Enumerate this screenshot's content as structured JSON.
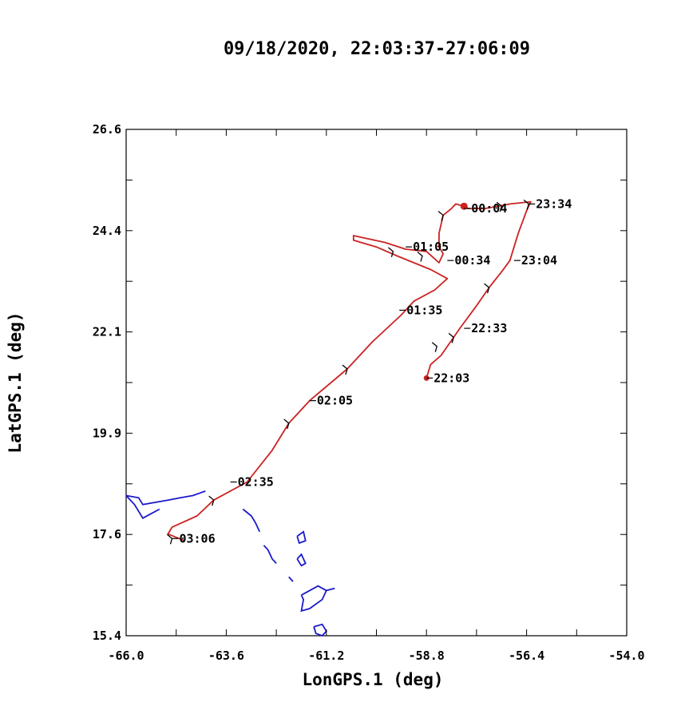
{
  "title": "09/18/2020, 22:03:37-27:06:09",
  "chart_data": {
    "type": "line",
    "title": "09/18/2020, 22:03:37-27:06:09",
    "xlabel": "LonGPS.1 (deg)",
    "ylabel": "LatGPS.1 (deg)",
    "xlim": [
      -66.0,
      -54.0
    ],
    "ylim": [
      15.4,
      26.6
    ],
    "x_ticks": [
      "-66.0",
      "-63.6",
      "-61.2",
      "-58.8",
      "-56.4",
      "-54.0"
    ],
    "y_ticks": [
      "15.4",
      "17.6",
      "19.9",
      "22.1",
      "24.4",
      "26.6"
    ],
    "grid": false,
    "track_color": "#cc2222",
    "coast_color": "#1a1acc",
    "series": [
      {
        "points": [
          [
            -58.8,
            21.1
          ],
          [
            -58.7,
            21.4
          ],
          [
            -58.45,
            21.6
          ],
          [
            -58.15,
            22.0
          ],
          [
            -58.0,
            22.2
          ],
          [
            -57.6,
            22.7
          ],
          [
            -57.3,
            23.1
          ],
          [
            -57.0,
            23.45
          ],
          [
            -56.8,
            23.7
          ],
          [
            -56.6,
            24.3
          ],
          [
            -56.4,
            24.8
          ],
          [
            -56.3,
            25.0
          ],
          [
            -56.8,
            24.95
          ],
          [
            -57.4,
            24.85
          ],
          [
            -57.8,
            24.85
          ],
          [
            -57.9,
            24.9
          ],
          [
            -58.1,
            24.95
          ],
          [
            -58.2,
            24.85
          ],
          [
            -58.4,
            24.7
          ],
          [
            -58.5,
            24.3
          ],
          [
            -58.5,
            24.0
          ],
          [
            -58.4,
            23.85
          ],
          [
            -58.5,
            23.65
          ],
          [
            -58.8,
            23.9
          ],
          [
            -59.3,
            23.95
          ],
          [
            -59.8,
            24.1
          ],
          [
            -60.3,
            24.2
          ],
          [
            -60.55,
            24.25
          ],
          [
            -60.55,
            24.15
          ],
          [
            -60.0,
            24.0
          ],
          [
            -59.5,
            23.8
          ],
          [
            -58.7,
            23.5
          ],
          [
            -58.3,
            23.3
          ],
          [
            -58.6,
            23.05
          ],
          [
            -59.1,
            22.8
          ],
          [
            -59.4,
            22.5
          ],
          [
            -60.1,
            21.9
          ],
          [
            -60.7,
            21.3
          ],
          [
            -61.6,
            20.6
          ],
          [
            -62.1,
            20.1
          ],
          [
            -62.5,
            19.5
          ],
          [
            -63.1,
            18.8
          ],
          [
            -63.9,
            18.4
          ],
          [
            -64.3,
            18.05
          ],
          [
            -64.9,
            17.8
          ],
          [
            -65.0,
            17.65
          ],
          [
            -64.6,
            17.5
          ]
        ]
      }
    ],
    "start_point": [
      -58.8,
      21.1
    ],
    "marker_point": [
      -57.9,
      24.9
    ],
    "time_labels": [
      {
        "text": "22:03",
        "x": -58.8,
        "y": 21.1
      },
      {
        "text": "22:33",
        "x": -57.9,
        "y": 22.2
      },
      {
        "text": "23:04",
        "x": -56.7,
        "y": 23.7
      },
      {
        "text": "23:34",
        "x": -56.35,
        "y": 24.95
      },
      {
        "text": "00:04",
        "x": -57.9,
        "y": 24.85
      },
      {
        "text": "00:34",
        "x": -58.3,
        "y": 23.7
      },
      {
        "text": "01:05",
        "x": -59.3,
        "y": 24.0
      },
      {
        "text": "01:35",
        "x": -59.45,
        "y": 22.6
      },
      {
        "text": "02:05",
        "x": -61.6,
        "y": 20.6
      },
      {
        "text": "02:35",
        "x": -63.5,
        "y": 18.8
      },
      {
        "text": "03:06",
        "x": -64.9,
        "y": 17.55
      }
    ],
    "coastlines": [
      [
        [
          -66.0,
          18.5
        ],
        [
          -65.7,
          18.45
        ],
        [
          -65.6,
          18.3
        ],
        [
          -65.3,
          18.35
        ],
        [
          -65.0,
          18.4
        ],
        [
          -64.7,
          18.45
        ],
        [
          -64.4,
          18.5
        ],
        [
          -64.1,
          18.6
        ]
      ],
      [
        [
          -66.0,
          18.5
        ],
        [
          -65.8,
          18.3
        ],
        [
          -65.6,
          18.0
        ],
        [
          -65.4,
          18.1
        ],
        [
          -65.2,
          18.2
        ]
      ],
      [
        [
          -63.2,
          18.2
        ],
        [
          -63.0,
          18.05
        ],
        [
          -62.9,
          17.9
        ],
        [
          -62.8,
          17.7
        ]
      ],
      [
        [
          -62.7,
          17.4
        ],
        [
          -62.6,
          17.3
        ],
        [
          -62.5,
          17.1
        ],
        [
          -62.4,
          17.0
        ]
      ],
      [
        [
          -61.9,
          17.1
        ],
        [
          -61.8,
          17.2
        ],
        [
          -61.7,
          17.0
        ],
        [
          -61.8,
          16.95
        ],
        [
          -61.9,
          17.1
        ]
      ],
      [
        [
          -61.9,
          17.6
        ],
        [
          -61.75,
          17.7
        ],
        [
          -61.7,
          17.5
        ],
        [
          -61.85,
          17.45
        ],
        [
          -61.9,
          17.6
        ]
      ],
      [
        [
          -62.1,
          16.7
        ],
        [
          -62.0,
          16.6
        ]
      ],
      [
        [
          -61.8,
          16.3
        ],
        [
          -61.6,
          16.4
        ],
        [
          -61.4,
          16.5
        ],
        [
          -61.2,
          16.4
        ],
        [
          -61.3,
          16.2
        ],
        [
          -61.6,
          16.0
        ],
        [
          -61.8,
          15.95
        ],
        [
          -61.75,
          16.2
        ],
        [
          -61.8,
          16.3
        ]
      ],
      [
        [
          -61.2,
          16.4
        ],
        [
          -61.0,
          16.45
        ]
      ],
      [
        [
          -61.5,
          15.6
        ],
        [
          -61.3,
          15.65
        ],
        [
          -61.2,
          15.5
        ],
        [
          -61.3,
          15.4
        ],
        [
          -61.45,
          15.45
        ],
        [
          -61.5,
          15.6
        ]
      ]
    ],
    "arrows": [
      [
        -58.55,
        21.8
      ],
      [
        -58.15,
        22.0
      ],
      [
        -57.3,
        23.1
      ],
      [
        -56.35,
        24.95
      ],
      [
        -57.0,
        24.9
      ],
      [
        -58.4,
        24.7
      ],
      [
        -58.9,
        23.8
      ],
      [
        -59.6,
        23.9
      ],
      [
        -60.7,
        21.3
      ],
      [
        -62.1,
        20.1
      ],
      [
        -63.9,
        18.4
      ],
      [
        -64.9,
        17.55
      ]
    ]
  }
}
